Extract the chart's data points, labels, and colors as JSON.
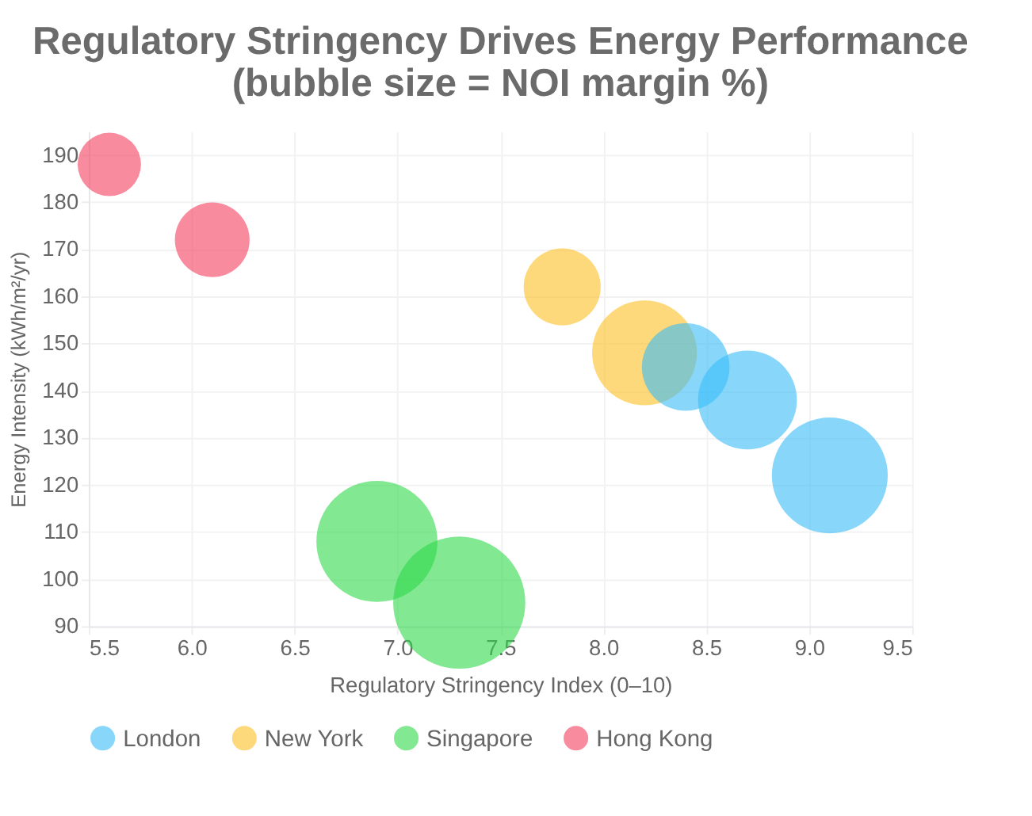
{
  "chart_data": {
    "type": "bubble",
    "title": [
      "Regulatory Stringency Drives Energy Performance",
      "(bubble size = NOI margin %)"
    ],
    "xlabel": "Regulatory Stringency Index (0–10)",
    "ylabel": "Energy Intensity (kWh/m²/yr)",
    "series": [
      {
        "name": "London",
        "color": "#38bdf8",
        "x": [
          8.4,
          8.7,
          9.1
        ],
        "values": [
          145,
          138,
          122
        ],
        "sizes": [
          0.44,
          0.56,
          0.77
        ]
      },
      {
        "name": "New York",
        "color": "#fbbf24",
        "x": [
          7.8,
          8.2
        ],
        "values": [
          162,
          148
        ],
        "sizes": [
          0.34,
          0.63
        ]
      },
      {
        "name": "Singapore",
        "color": "#2fd94a",
        "x": [
          6.9,
          7.3
        ],
        "values": [
          108,
          95
        ],
        "sizes": [
          0.84,
          1
        ]
      },
      {
        "name": "Hong Kong",
        "color": "#f43f5e",
        "x": [
          5.6,
          6.1
        ],
        "values": [
          188,
          172
        ],
        "sizes": [
          0.23,
          0.32
        ]
      }
    ],
    "xlim": [
      5.5,
      9.5
    ],
    "xticks": [
      5.5,
      {
        "value": 6,
        "label": "6.0"
      },
      6.5,
      {
        "value": 7,
        "label": "7.0"
      },
      7.5,
      {
        "value": 8,
        "label": "8.0"
      },
      8.5,
      {
        "value": 9,
        "label": "9.0"
      },
      9.5
    ],
    "ylim": [
      90,
      195
    ],
    "yticks": [
      90,
      100,
      110,
      120,
      130,
      140,
      150,
      160,
      170,
      180,
      190
    ],
    "grid": true,
    "legend": "bottom"
  }
}
